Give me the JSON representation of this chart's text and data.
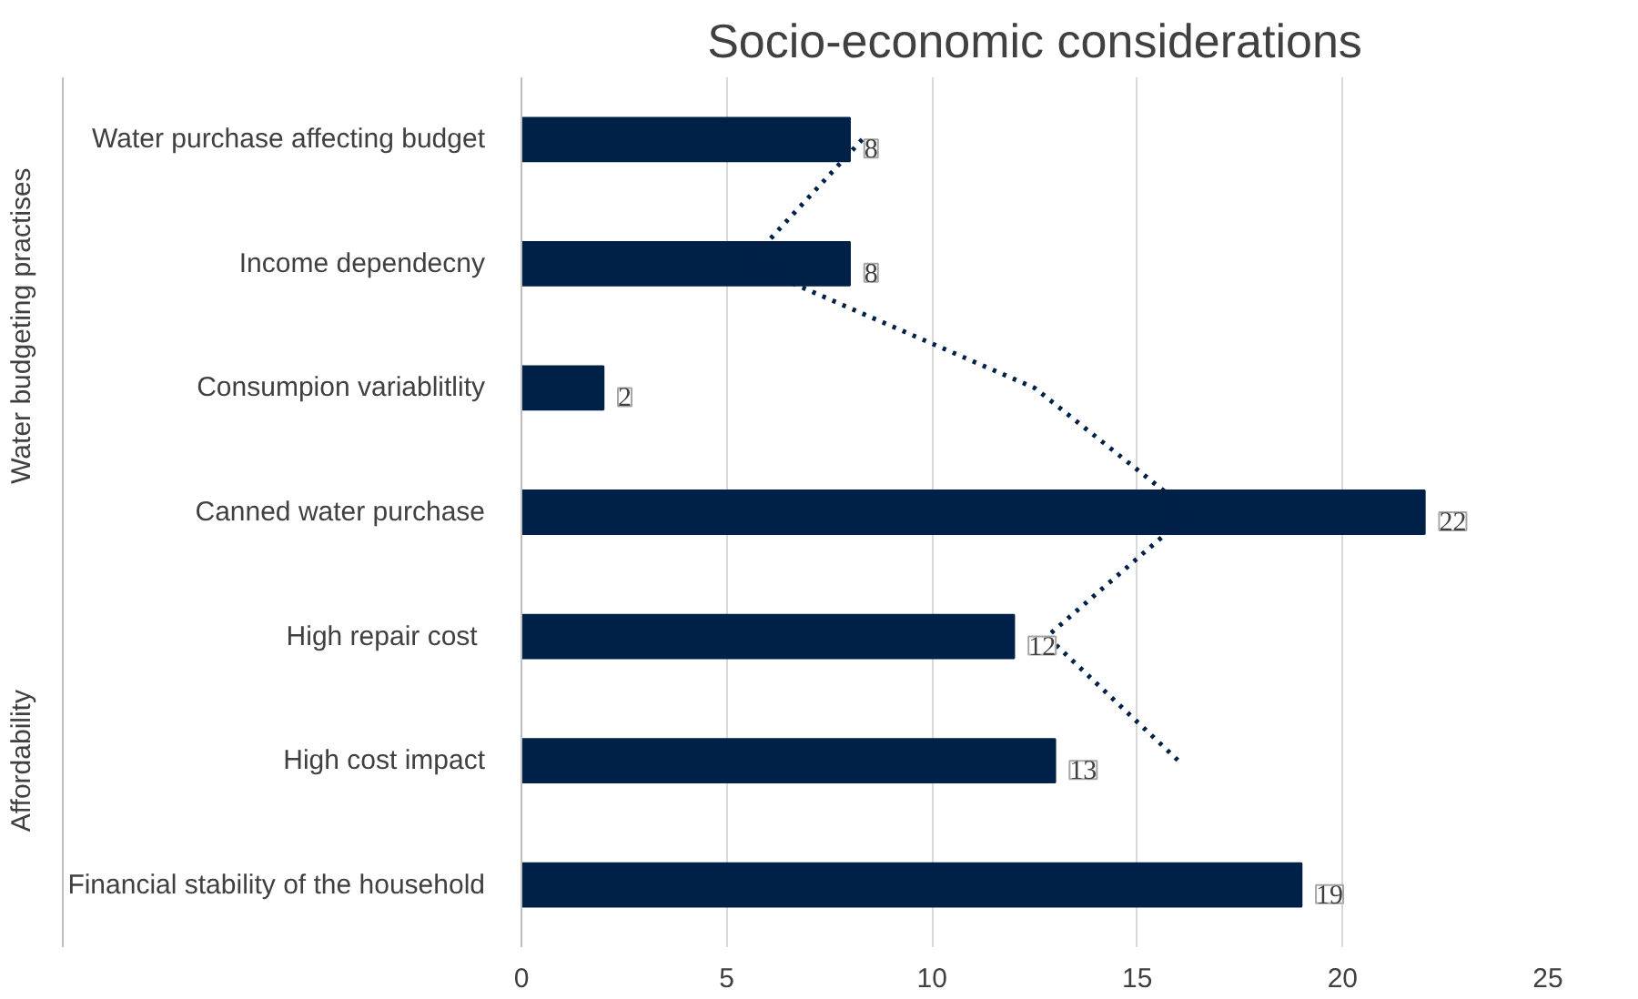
{
  "chart_data": {
    "type": "bar",
    "orientation": "horizontal",
    "title": "Socio-economic considerations",
    "categories": [
      "Water purchase affecting budget",
      "Income dependecny",
      "Consumpion variablitlity",
      "Canned water purchase",
      "High repair cost ",
      "High cost impact",
      "Financial stability of the household"
    ],
    "series": [
      {
        "color": "#002147",
        "values": [
          8,
          8,
          2,
          22,
          12,
          13,
          19
        ],
        "value_labels": [
          "8",
          "8",
          "2",
          "22",
          "12",
          "13",
          "19"
        ]
      },
      {
        "type": "line",
        "color": "#002147",
        "line_style": "dotted",
        "values": [
          8.3,
          5.5,
          12.5,
          16.3,
          12.8,
          16,
          null
        ]
      }
    ],
    "annotations": [
      "Water budgeting practises",
      "Affordability"
    ],
    "xlim": [
      0,
      25
    ],
    "xticks": [
      0,
      5,
      10,
      15,
      20,
      25
    ],
    "grid": "x"
  }
}
